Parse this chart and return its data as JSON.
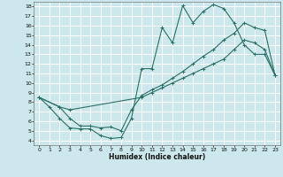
{
  "xlabel": "Humidex (Indice chaleur)",
  "bg_color": "#cce8ec",
  "grid_color": "#ffffff",
  "line_color": "#2a6e65",
  "xlim": [
    -0.5,
    23.5
  ],
  "ylim": [
    3.5,
    18.5
  ],
  "xticks": [
    0,
    1,
    2,
    3,
    4,
    5,
    6,
    7,
    8,
    9,
    10,
    11,
    12,
    13,
    14,
    15,
    16,
    17,
    18,
    19,
    20,
    21,
    22,
    23
  ],
  "yticks": [
    4,
    5,
    6,
    7,
    8,
    9,
    10,
    11,
    12,
    13,
    14,
    15,
    16,
    17,
    18
  ],
  "curve1_x": [
    0,
    1,
    2,
    3,
    4,
    5,
    6,
    7,
    8,
    9,
    10,
    11,
    12,
    13,
    14,
    15,
    16,
    17,
    18,
    19,
    20,
    21,
    22,
    23
  ],
  "curve1_y": [
    8.5,
    7.5,
    6.3,
    5.3,
    5.2,
    5.2,
    4.5,
    4.2,
    4.3,
    6.3,
    11.5,
    11.5,
    15.8,
    14.2,
    18.1,
    16.3,
    17.5,
    18.2,
    17.8,
    16.3,
    14.0,
    13.0,
    13.0,
    10.8
  ],
  "curve2_x": [
    0,
    2,
    3,
    4,
    5,
    6,
    7,
    8,
    9,
    10,
    11,
    12,
    13,
    14,
    15,
    16,
    17,
    18,
    19,
    20,
    21,
    22,
    23
  ],
  "curve2_y": [
    8.5,
    7.5,
    6.3,
    5.5,
    5.5,
    5.3,
    5.4,
    5.0,
    7.2,
    8.7,
    9.3,
    9.8,
    10.5,
    11.2,
    12.0,
    12.8,
    13.5,
    14.5,
    15.2,
    16.3,
    15.8,
    15.5,
    10.8
  ],
  "curve3_x": [
    0,
    2,
    3,
    10,
    11,
    12,
    13,
    14,
    15,
    16,
    17,
    18,
    19,
    20,
    21,
    22,
    23
  ],
  "curve3_y": [
    8.5,
    7.5,
    7.2,
    8.5,
    9.0,
    9.5,
    10.0,
    10.5,
    11.0,
    11.5,
    12.0,
    12.5,
    13.5,
    14.5,
    14.2,
    13.5,
    10.8
  ]
}
